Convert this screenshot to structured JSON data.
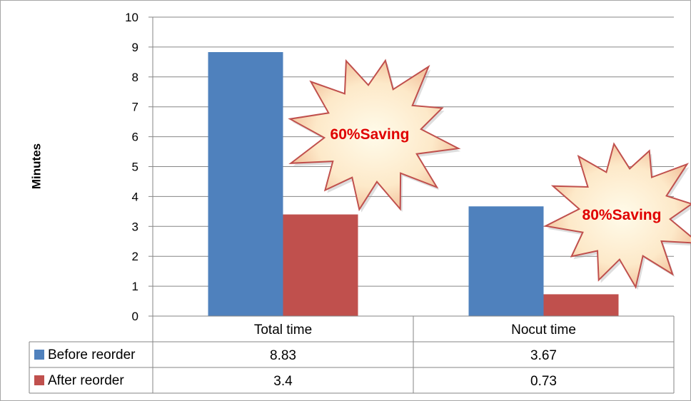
{
  "chart_data": {
    "type": "bar",
    "ylabel": "Minutes",
    "ylim": [
      0,
      10
    ],
    "yticks": [
      "0",
      "1",
      "2",
      "3",
      "4",
      "5",
      "6",
      "7",
      "8",
      "9",
      "10"
    ],
    "grid": true,
    "categories": [
      "Total time",
      "Nocut time"
    ],
    "series": [
      {
        "name": "Before reorder",
        "color": "#4f81bd",
        "values": [
          8.83,
          3.67
        ],
        "labels": [
          "8.83",
          "3.67"
        ]
      },
      {
        "name": "After reorder",
        "color": "#c0504d",
        "values": [
          3.4,
          0.73
        ],
        "labels": [
          "3.4",
          "0.73"
        ]
      }
    ],
    "annotations": [
      {
        "text": "60%Saving",
        "category": "Total time"
      },
      {
        "text": "80%Saving",
        "category": "Nocut time"
      }
    ],
    "data_table": true
  }
}
